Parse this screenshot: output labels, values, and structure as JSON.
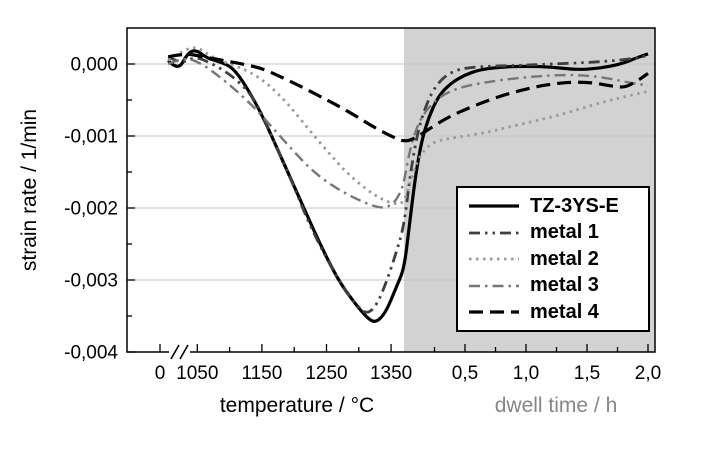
{
  "chart_data": {
    "type": "line",
    "title": "",
    "ylabel": "strain rate / 1/min",
    "xlabel_left": "temperature / °C",
    "xlabel_right": "dwell time / h",
    "ylim": [
      -0.004,
      0.0005
    ],
    "grid": {
      "show": true,
      "color": "#c6c6c6"
    },
    "y_ticks": [
      {
        "value": 0.0,
        "label": "0,000"
      },
      {
        "value": -0.001,
        "label": "-0,001"
      },
      {
        "value": -0.002,
        "label": "-0,002"
      },
      {
        "value": -0.003,
        "label": "-0,003"
      },
      {
        "value": -0.004,
        "label": "-0,004"
      }
    ],
    "y_minor_ticks": [
      -0.0005,
      -0.0015,
      -0.0025,
      -0.0035
    ],
    "x_axis": {
      "origin_label": "0",
      "axis_break": true,
      "temperature": {
        "range": [
          1000,
          1370
        ],
        "ticks": [
          {
            "value": 1050,
            "label": "1050"
          },
          {
            "value": 1150,
            "label": "1150"
          },
          {
            "value": 1250,
            "label": "1250"
          },
          {
            "value": 1350,
            "label": "1350"
          }
        ],
        "minor_ticks": [
          1100,
          1200,
          1300
        ],
        "label_color": "#000000"
      },
      "dwell": {
        "range": [
          0,
          2
        ],
        "ticks": [
          {
            "value": 0.5,
            "label": "0,5"
          },
          {
            "value": 1.0,
            "label": "1,0"
          },
          {
            "value": 1.5,
            "label": "1,5"
          },
          {
            "value": 2.0,
            "label": "2,0"
          }
        ],
        "minor_ticks": [
          0.25,
          0.75,
          1.25,
          1.75
        ],
        "label_color": "#868686",
        "region_color": "#d2d2d2"
      }
    },
    "series": [
      {
        "name": "TZ-3YS-E",
        "color": "#000000",
        "width": 3.2,
        "dash": "",
        "temp_points": [
          [
            1005,
            5e-05
          ],
          [
            1020,
            -0.0001
          ],
          [
            1035,
            0.00015
          ],
          [
            1048,
            0.0002
          ],
          [
            1065,
            8e-05
          ],
          [
            1085,
            3e-05
          ],
          [
            1105,
            -5e-05
          ],
          [
            1125,
            -0.0003
          ],
          [
            1150,
            -0.0007
          ],
          [
            1180,
            -0.0013
          ],
          [
            1210,
            -0.0019
          ],
          [
            1240,
            -0.0025
          ],
          [
            1268,
            -0.003
          ],
          [
            1292,
            -0.0033
          ],
          [
            1312,
            -0.00352
          ],
          [
            1326,
            -0.0036
          ],
          [
            1342,
            -0.00345
          ],
          [
            1358,
            -0.0031
          ],
          [
            1370,
            -0.00285
          ]
        ],
        "dwell_points": [
          [
            0.04,
            -0.0023
          ],
          [
            0.09,
            -0.0016
          ],
          [
            0.14,
            -0.0011
          ],
          [
            0.2,
            -0.00075
          ],
          [
            0.28,
            -0.00045
          ],
          [
            0.38,
            -0.00027
          ],
          [
            0.5,
            -0.00015
          ],
          [
            0.62,
            -8e-05
          ],
          [
            0.8,
            -4e-05
          ],
          [
            1.0,
            -3e-05
          ],
          [
            1.2,
            -4e-05
          ],
          [
            1.42,
            -8e-05
          ],
          [
            1.6,
            -6e-05
          ],
          [
            1.78,
            0.0
          ],
          [
            1.9,
            8e-05
          ],
          [
            2.0,
            0.00014
          ]
        ]
      },
      {
        "name": "metal 1",
        "color": "#3f3f3f",
        "width": 2.8,
        "dash": "11 5 2.5 5 2.5 5",
        "temp_points": [
          [
            1005,
            0.0001
          ],
          [
            1025,
            0.0
          ],
          [
            1045,
            0.0001
          ],
          [
            1065,
            4e-05
          ],
          [
            1090,
            -8e-05
          ],
          [
            1115,
            -0.00025
          ],
          [
            1140,
            -0.0005
          ],
          [
            1165,
            -0.001
          ],
          [
            1195,
            -0.0016
          ],
          [
            1222,
            -0.0022
          ],
          [
            1250,
            -0.0027
          ],
          [
            1277,
            -0.00312
          ],
          [
            1297,
            -0.00335
          ],
          [
            1312,
            -0.00348
          ],
          [
            1328,
            -0.00335
          ],
          [
            1344,
            -0.003
          ],
          [
            1358,
            -0.00262
          ],
          [
            1370,
            -0.00225
          ]
        ],
        "dwell_points": [
          [
            0.05,
            -0.00155
          ],
          [
            0.1,
            -0.00105
          ],
          [
            0.15,
            -0.00072
          ],
          [
            0.22,
            -0.00042
          ],
          [
            0.3,
            -0.00022
          ],
          [
            0.4,
            -0.0001
          ],
          [
            0.52,
            -5e-05
          ],
          [
            0.7,
            -3e-05
          ],
          [
            0.95,
            -2e-05
          ],
          [
            1.2,
            0.0
          ],
          [
            1.5,
            2e-05
          ],
          [
            1.75,
            5e-05
          ],
          [
            1.9,
            8e-05
          ],
          [
            2.0,
            0.00012
          ]
        ]
      },
      {
        "name": "metal 2",
        "color": "#9b9b9b",
        "width": 2.8,
        "dash": "2.5 4.5",
        "temp_points": [
          [
            1005,
            5e-05
          ],
          [
            1030,
            0.0002
          ],
          [
            1050,
            0.00024
          ],
          [
            1072,
            0.0001
          ],
          [
            1100,
            0.0
          ],
          [
            1130,
            -0.0001
          ],
          [
            1160,
            -0.00028
          ],
          [
            1190,
            -0.00055
          ],
          [
            1220,
            -0.00088
          ],
          [
            1250,
            -0.0012
          ],
          [
            1280,
            -0.0015
          ],
          [
            1310,
            -0.00173
          ],
          [
            1335,
            -0.00188
          ],
          [
            1358,
            -0.00195
          ],
          [
            1370,
            -0.00192
          ]
        ],
        "dwell_points": [
          [
            0.05,
            -0.00165
          ],
          [
            0.1,
            -0.00138
          ],
          [
            0.17,
            -0.00118
          ],
          [
            0.25,
            -0.00108
          ],
          [
            0.35,
            -0.00104
          ],
          [
            0.5,
            -0.001
          ],
          [
            0.68,
            -0.00095
          ],
          [
            0.85,
            -0.00088
          ],
          [
            1.05,
            -0.0008
          ],
          [
            1.25,
            -0.00072
          ],
          [
            1.45,
            -0.00062
          ],
          [
            1.65,
            -0.00052
          ],
          [
            1.82,
            -0.00045
          ],
          [
            2.0,
            -0.00038
          ]
        ]
      },
      {
        "name": "metal 3",
        "color": "#767676",
        "width": 2.4,
        "dash": "11 5 2.5 5",
        "temp_points": [
          [
            1005,
            0.0
          ],
          [
            1030,
            0.0001
          ],
          [
            1058,
            0.0
          ],
          [
            1085,
            -0.00018
          ],
          [
            1112,
            -0.00038
          ],
          [
            1140,
            -0.00062
          ],
          [
            1168,
            -0.0009
          ],
          [
            1196,
            -0.00118
          ],
          [
            1224,
            -0.00145
          ],
          [
            1252,
            -0.00165
          ],
          [
            1280,
            -0.0018
          ],
          [
            1305,
            -0.00191
          ],
          [
            1325,
            -0.00198
          ],
          [
            1342,
            -0.002
          ],
          [
            1356,
            -0.00192
          ],
          [
            1366,
            -0.00175
          ],
          [
            1370,
            -0.00163
          ]
        ],
        "dwell_points": [
          [
            0.05,
            -0.00118
          ],
          [
            0.1,
            -0.0009
          ],
          [
            0.16,
            -0.0007
          ],
          [
            0.23,
            -0.00055
          ],
          [
            0.32,
            -0.00043
          ],
          [
            0.42,
            -0.00035
          ],
          [
            0.55,
            -0.00029
          ],
          [
            0.72,
            -0.00024
          ],
          [
            0.9,
            -0.0002
          ],
          [
            1.1,
            -0.00017
          ],
          [
            1.3,
            -0.00015
          ],
          [
            1.5,
            -0.00016
          ],
          [
            1.68,
            -0.0002
          ],
          [
            1.85,
            -0.00026
          ],
          [
            2.0,
            -0.0003
          ]
        ]
      },
      {
        "name": "metal 4",
        "color": "#000000",
        "width": 3.2,
        "dash": "14 7",
        "temp_points": [
          [
            1005,
            0.0001
          ],
          [
            1030,
            0.00015
          ],
          [
            1060,
            0.0001
          ],
          [
            1090,
            5e-05
          ],
          [
            1120,
            0.0
          ],
          [
            1150,
            -6e-05
          ],
          [
            1180,
            -0.00018
          ],
          [
            1210,
            -0.00031
          ],
          [
            1240,
            -0.00045
          ],
          [
            1268,
            -0.00058
          ],
          [
            1295,
            -0.00072
          ],
          [
            1320,
            -0.00086
          ],
          [
            1345,
            -0.00098
          ],
          [
            1362,
            -0.00105
          ],
          [
            1370,
            -0.00107
          ]
        ],
        "dwell_points": [
          [
            0.05,
            -0.00106
          ],
          [
            0.12,
            -0.001
          ],
          [
            0.2,
            -0.00091
          ],
          [
            0.3,
            -0.0008
          ],
          [
            0.4,
            -0.00071
          ],
          [
            0.52,
            -0.00062
          ],
          [
            0.65,
            -0.00053
          ],
          [
            0.8,
            -0.00044
          ],
          [
            0.95,
            -0.00037
          ],
          [
            1.1,
            -0.00031
          ],
          [
            1.25,
            -0.00027
          ],
          [
            1.4,
            -0.00025
          ],
          [
            1.55,
            -0.00026
          ],
          [
            1.68,
            -0.0003
          ],
          [
            1.8,
            -0.00033
          ],
          [
            1.9,
            -0.00025
          ],
          [
            2.0,
            -0.00013
          ]
        ]
      }
    ],
    "legend": {
      "entries": [
        "TZ-3YS-E",
        "metal 1",
        "metal 2",
        "metal 3",
        "metal 4"
      ],
      "border_color": "#000000",
      "background": "#ffffff"
    }
  }
}
